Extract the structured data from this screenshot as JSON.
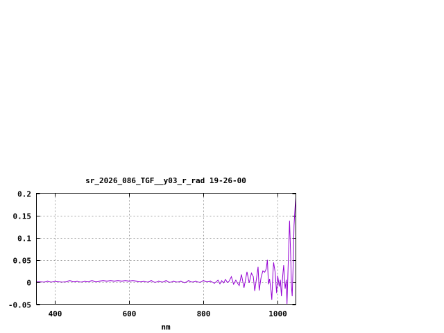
{
  "chart_data": {
    "type": "line",
    "title": "sr_2026_086_TGF__y03_r_rad 19-26-00",
    "xlabel": "nm",
    "ylabel": "",
    "xlim": [
      350,
      1050
    ],
    "ylim": [
      -0.05,
      0.2
    ],
    "grid": true,
    "x_ticks": [
      {
        "value": 400,
        "label": "400"
      },
      {
        "value": 600,
        "label": "600"
      },
      {
        "value": 800,
        "label": "800"
      },
      {
        "value": 1000,
        "label": "1000"
      }
    ],
    "y_ticks": [
      {
        "value": 0.2,
        "label": "0.2"
      },
      {
        "value": 0.15,
        "label": "0.15"
      },
      {
        "value": 0.1,
        "label": "0.1"
      },
      {
        "value": 0.05,
        "label": "0.05"
      },
      {
        "value": 0,
        "label": "0"
      },
      {
        "value": -0.05,
        "label": "-0.05"
      }
    ],
    "series_color": "#9400d3",
    "series": [
      {
        "x": [
          350,
          360,
          370,
          380,
          390,
          400,
          410,
          420,
          430,
          440,
          450,
          460,
          470,
          480,
          490,
          500,
          510,
          520,
          530,
          540,
          550,
          560,
          570,
          580,
          590,
          600,
          610,
          620,
          630,
          640,
          650,
          660,
          670,
          680,
          690,
          700,
          710,
          720,
          730,
          740,
          750,
          760,
          770,
          780,
          790,
          800,
          810,
          820,
          830,
          840,
          845,
          850,
          855,
          860,
          865,
          870,
          876,
          882,
          888,
          893,
          897,
          903,
          910,
          918,
          924,
          930,
          935,
          939,
          944,
          948,
          951,
          956,
          961,
          966,
          970,
          973,
          976,
          979,
          983,
          985,
          988,
          990,
          994,
          998,
          1001,
          1005,
          1008,
          1011,
          1014,
          1017,
          1021,
          1024,
          1026,
          1030,
          1033,
          1036,
          1038,
          1040,
          1043,
          1045,
          1048,
          1050
        ],
        "y": [
          0.001,
          0.001,
          0.0,
          0.002,
          0.0,
          0.002,
          0.001,
          0.0,
          0.001,
          0.003,
          0.001,
          0.002,
          0.0,
          0.002,
          0.001,
          0.003,
          0.001,
          0.002,
          0.003,
          0.002,
          0.003,
          0.002,
          0.003,
          0.002,
          0.003,
          0.002,
          0.003,
          0.002,
          0.001,
          0.002,
          0.0,
          0.003,
          -0.001,
          0.002,
          0.0,
          0.003,
          -0.001,
          0.002,
          0.0,
          0.002,
          -0.002,
          0.003,
          0.0,
          0.002,
          -0.001,
          0.003,
          0.001,
          0.002,
          -0.003,
          0.004,
          -0.004,
          0.003,
          -0.002,
          0.006,
          -0.001,
          0.002,
          0.012,
          -0.005,
          0.004,
          -0.003,
          -0.008,
          0.017,
          -0.013,
          0.023,
          -0.002,
          0.02,
          0.012,
          -0.02,
          0.01,
          0.034,
          -0.019,
          0.01,
          0.025,
          0.022,
          0.03,
          0.05,
          -0.005,
          0.007,
          -0.02,
          -0.04,
          0.02,
          0.044,
          0.022,
          -0.025,
          0.014,
          -0.01,
          0.005,
          -0.032,
          0.01,
          0.038,
          -0.015,
          0.005,
          -0.05,
          0.06,
          0.138,
          0.06,
          -0.01,
          -0.032,
          0.05,
          0.127,
          0.17,
          0.19
        ]
      }
    ]
  }
}
